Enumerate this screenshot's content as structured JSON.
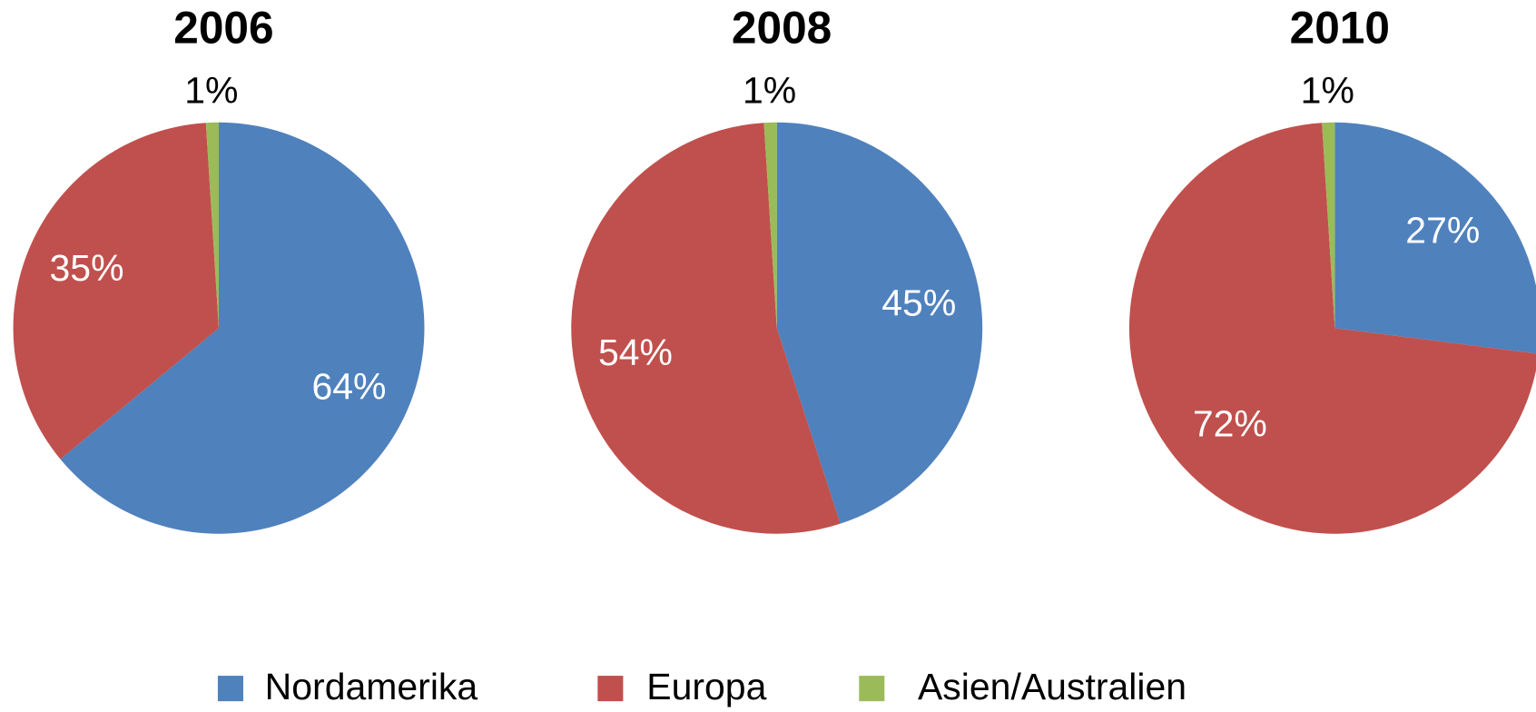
{
  "chart_data": [
    {
      "type": "pie",
      "title": "2006",
      "categories": [
        "Nordamerika",
        "Europa",
        "Asien/Australien"
      ],
      "values": [
        64,
        35,
        1
      ],
      "value_labels": [
        "64%",
        "35%",
        "1%"
      ],
      "colors": [
        "#4f81bd",
        "#c0504d",
        "#9bbb59"
      ]
    },
    {
      "type": "pie",
      "title": "2008",
      "categories": [
        "Nordamerika",
        "Europa",
        "Asien/Australien"
      ],
      "values": [
        45,
        54,
        1
      ],
      "value_labels": [
        "45%",
        "54%",
        "1%"
      ],
      "colors": [
        "#4f81bd",
        "#c0504d",
        "#9bbb59"
      ]
    },
    {
      "type": "pie",
      "title": "2010",
      "categories": [
        "Nordamerika",
        "Europa",
        "Asien/Australien"
      ],
      "values": [
        27,
        72,
        1
      ],
      "value_labels": [
        "27%",
        "72%",
        "1%"
      ],
      "colors": [
        "#4f81bd",
        "#c0504d",
        "#9bbb59"
      ]
    }
  ]
}
